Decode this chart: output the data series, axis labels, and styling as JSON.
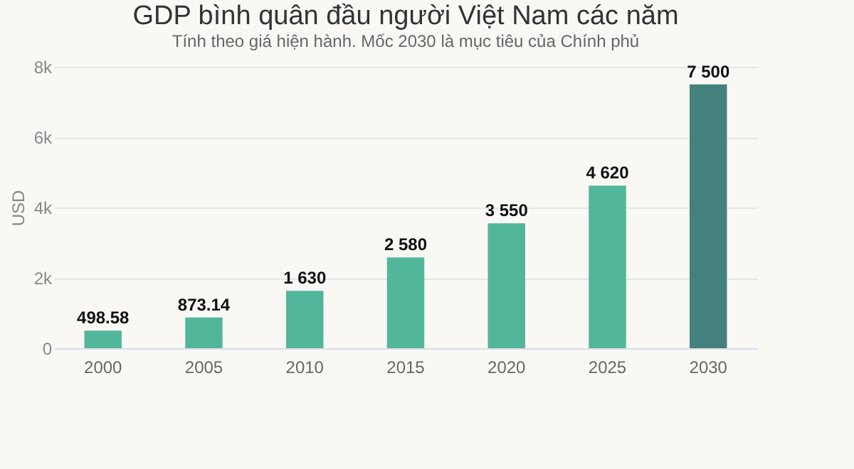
{
  "chart_data": {
    "type": "bar",
    "title": "GDP bình quân đầu người Việt Nam các năm",
    "subtitle": "Tính theo giá hiện hành. Mốc 2030 là mục tiêu của Chính phủ",
    "ylabel": "USD",
    "categories": [
      "2000",
      "2005",
      "2010",
      "2015",
      "2020",
      "2025",
      "2030"
    ],
    "values": [
      498.58,
      873.14,
      1630,
      2580,
      3550,
      4620,
      7500
    ],
    "value_labels": [
      "498.58",
      "873.14",
      "1 630",
      "2 580",
      "3 550",
      "4 620",
      "7 500"
    ],
    "colors": [
      "#52b69a",
      "#52b69a",
      "#52b69a",
      "#52b69a",
      "#52b69a",
      "#52b69a",
      "#44807e"
    ],
    "ylim": [
      0,
      8000
    ],
    "yticks": [
      {
        "value": 0,
        "label": "0"
      },
      {
        "value": 2000,
        "label": "2k"
      },
      {
        "value": 4000,
        "label": "4k"
      },
      {
        "value": 6000,
        "label": "6k"
      },
      {
        "value": 8000,
        "label": "8k"
      }
    ],
    "grid": "y"
  }
}
